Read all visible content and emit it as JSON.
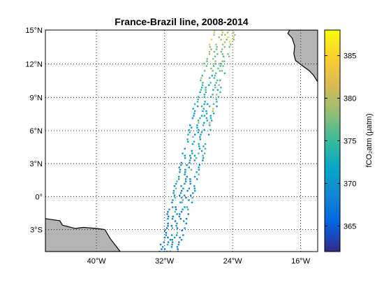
{
  "title": "France-Brazil line, 2008-2014",
  "colorbar_label": "fCO₂atm (μatm)",
  "colors": {
    "land": "#b4b4b4",
    "grid": "#222222",
    "colormap": [
      "#352a87",
      "#0363e1",
      "#1485d4",
      "#06a7c6",
      "#38b99e",
      "#92bf73",
      "#d9ba56",
      "#fcce2e",
      "#f9fb0e"
    ]
  },
  "map": {
    "projection": "mercator",
    "lon_range": [
      -46,
      -14
    ],
    "lat_range": [
      -5,
      15
    ],
    "lon_ticks": [
      {
        "value": -40,
        "label": "40°W"
      },
      {
        "value": -32,
        "label": "32°W"
      },
      {
        "value": -24,
        "label": "24°W"
      },
      {
        "value": -16,
        "label": "16°W"
      }
    ],
    "lat_ticks": [
      {
        "value": -3,
        "label": "3°S"
      },
      {
        "value": 0,
        "label": "0°"
      },
      {
        "value": 3,
        "label": "3°N"
      },
      {
        "value": 6,
        "label": "6°N"
      },
      {
        "value": 9,
        "label": "9°N"
      },
      {
        "value": 12,
        "label": "12°N"
      },
      {
        "value": 15,
        "label": "15°N"
      }
    ],
    "grid": true,
    "land_south_america": [
      [
        -46,
        -2
      ],
      [
        -44.3,
        -2.2
      ],
      [
        -44,
        -2.6
      ],
      [
        -42.5,
        -2.9
      ],
      [
        -41.5,
        -2.8
      ],
      [
        -40,
        -2.9
      ],
      [
        -39,
        -3.0
      ],
      [
        -38.4,
        -3.8
      ],
      [
        -37.6,
        -4.6
      ],
      [
        -37.2,
        -5.0
      ],
      [
        -46,
        -5.0
      ]
    ],
    "land_africa": [
      [
        -17.3,
        15.0
      ],
      [
        -17.5,
        14.7
      ],
      [
        -17.0,
        14.3
      ],
      [
        -16.7,
        13.6
      ],
      [
        -16.8,
        12.9
      ],
      [
        -16.6,
        12.3
      ],
      [
        -15.9,
        11.9
      ],
      [
        -15.0,
        11.4
      ],
      [
        -14.5,
        11.0
      ],
      [
        -14,
        10.4
      ],
      [
        -14,
        15
      ]
    ]
  },
  "colorbar": {
    "range": [
      362,
      388
    ],
    "ticks": [
      365,
      370,
      375,
      380,
      385
    ]
  },
  "chart_data": {
    "type": "scatter",
    "title": "France-Brazil line, 2008-2014",
    "x_axis": "longitude",
    "y_axis": "latitude",
    "color_variable": "fCO₂atm (μatm)",
    "color_range": [
      362,
      388
    ],
    "tracks": [
      {
        "start_lon": -32.5,
        "start_lat": -5,
        "end_lon": -26.2,
        "end_lat": 15
      },
      {
        "start_lon": -31.8,
        "start_lat": -5,
        "end_lon": -25.3,
        "end_lat": 15
      },
      {
        "start_lon": -31.2,
        "start_lat": -5,
        "end_lon": -24.5,
        "end_lat": 15
      },
      {
        "start_lon": -30.5,
        "start_lat": -5,
        "end_lon": -23.8,
        "end_lat": 15
      }
    ],
    "value_profile": {
      "lat": [
        -5,
        0,
        5,
        10,
        15
      ],
      "fco2": [
        368,
        369,
        371,
        374,
        380
      ]
    }
  }
}
